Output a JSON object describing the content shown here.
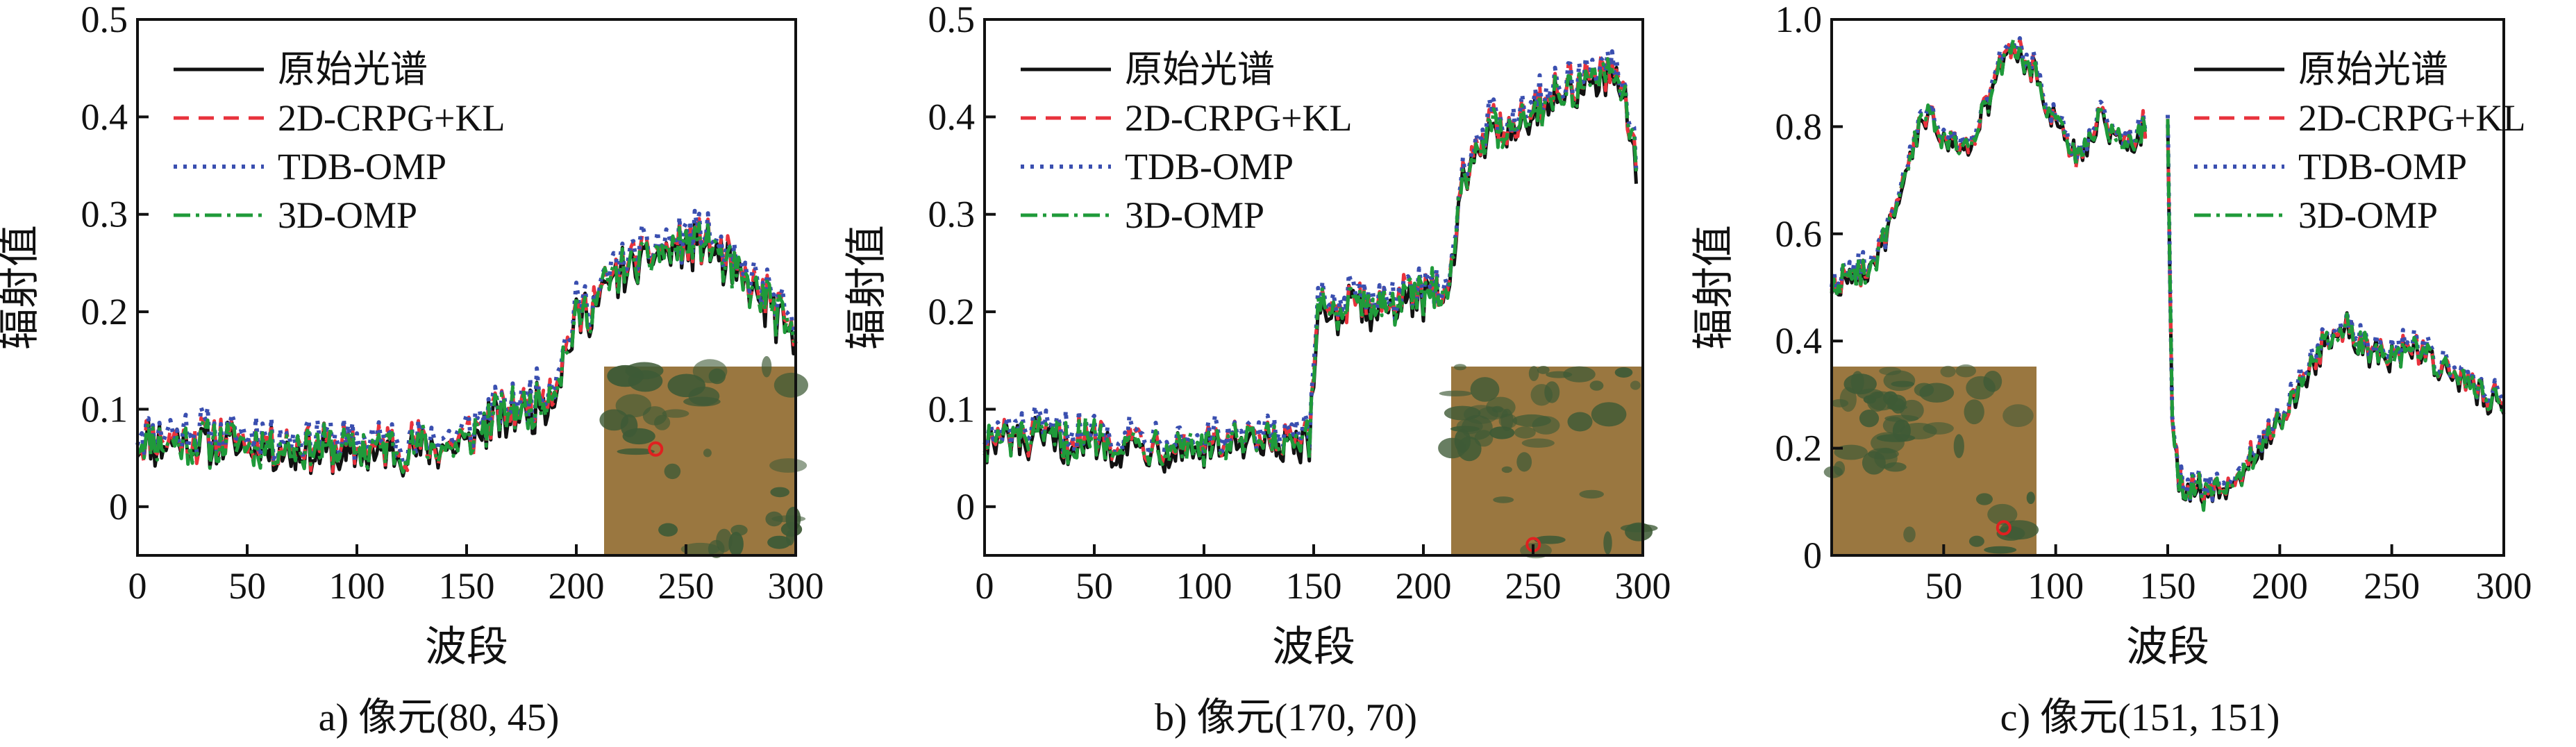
{
  "colors": {
    "original": "#111111",
    "crpg": "#e8323c",
    "tdb": "#3a4fb0",
    "omp3d": "#1f9a3a",
    "inset_background": "#9a7740",
    "inset_dark": "#3e5a36",
    "marker": "#e02020"
  },
  "legend_labels": [
    "原始光谱",
    "2D-CRPG+KL",
    "TDB-OMP",
    "3D-OMP"
  ],
  "chart_data": [
    {
      "type": "line",
      "caption": "a) 像元(80, 45)",
      "xlabel": "波段",
      "ylabel": "辐射值",
      "xlim": [
        0,
        300
      ],
      "ylim": [
        -0.05,
        0.5
      ],
      "xticks": [
        0,
        50,
        100,
        150,
        200,
        250,
        300
      ],
      "yticks": [
        0,
        0.1,
        0.2,
        0.3,
        0.4,
        0.5
      ],
      "xtick_labels": [
        "0",
        "50",
        "100",
        "150",
        "200",
        "250",
        "300"
      ],
      "ytick_labels": [
        "0",
        "0.1",
        "0.2",
        "0.3",
        "0.4",
        "0.5"
      ],
      "grid": false,
      "legend": "top-left",
      "legend_entries": [
        "原始光谱",
        "2D-CRPG+KL",
        "TDB-OMP",
        "3D-OMP"
      ],
      "inset": "pixel-location-image",
      "trend": {
        "x": [
          0,
          20,
          50,
          100,
          140,
          150,
          160,
          180,
          190,
          200,
          210,
          220,
          240,
          250,
          260,
          270,
          280,
          290,
          300
        ],
        "y": [
          0.065,
          0.065,
          0.062,
          0.055,
          0.058,
          0.065,
          0.085,
          0.1,
          0.12,
          0.19,
          0.21,
          0.24,
          0.26,
          0.265,
          0.27,
          0.24,
          0.22,
          0.2,
          0.165
        ]
      },
      "noise_amplitude": 0.022
    },
    {
      "type": "line",
      "caption": "b) 像元(170, 70)",
      "xlabel": "波段",
      "ylabel": "辐射值",
      "xlim": [
        0,
        300
      ],
      "ylim": [
        -0.05,
        0.5
      ],
      "xticks": [
        0,
        50,
        100,
        150,
        200,
        250,
        300
      ],
      "yticks": [
        0,
        0.1,
        0.2,
        0.3,
        0.4,
        0.5
      ],
      "xtick_labels": [
        "0",
        "50",
        "100",
        "150",
        "200",
        "250",
        "300"
      ],
      "ytick_labels": [
        "0",
        "0.1",
        "0.2",
        "0.3",
        "0.4",
        "0.5"
      ],
      "grid": false,
      "legend": "top-left",
      "legend_entries": [
        "原始光谱",
        "2D-CRPG+KL",
        "TDB-OMP",
        "3D-OMP"
      ],
      "inset": "pixel-location-image",
      "trend": {
        "x": [
          0,
          50,
          100,
          148,
          150,
          152,
          160,
          180,
          200,
          212,
          218,
          225,
          240,
          260,
          280,
          292,
          297
        ],
        "y": [
          0.065,
          0.065,
          0.06,
          0.06,
          0.12,
          0.21,
          0.2,
          0.205,
          0.21,
          0.23,
          0.33,
          0.375,
          0.39,
          0.42,
          0.44,
          0.42,
          0.35
        ]
      },
      "noise_amplitude": 0.02
    },
    {
      "type": "line",
      "caption": "c) 像元(151, 151)",
      "xlabel": "波段",
      "ylabel": "辐射值",
      "xlim": [
        0,
        300
      ],
      "ylim": [
        0,
        1.0
      ],
      "xticks": [
        50,
        100,
        150,
        200,
        250,
        300
      ],
      "yticks": [
        0,
        0.2,
        0.4,
        0.6,
        0.8,
        1.0
      ],
      "xtick_labels": [
        "50",
        "100",
        "150",
        "200",
        "250",
        "300"
      ],
      "ytick_labels": [
        "0",
        "0.2",
        "0.4",
        "0.6",
        "0.8",
        "1.0"
      ],
      "grid": false,
      "legend": "top-right",
      "legend_entries": [
        "原始光谱",
        "2D-CRPG+KL",
        "TDB-OMP",
        "3D-OMP"
      ],
      "inset": "pixel-location-image",
      "gap": [
        140,
        150
      ],
      "trend": {
        "x": [
          0,
          10,
          20,
          30,
          40,
          50,
          60,
          70,
          80,
          90,
          100,
          110,
          120,
          130,
          140,
          150,
          152,
          155,
          160,
          170,
          180,
          190,
          200,
          210,
          220,
          230,
          240,
          250,
          260,
          270,
          280,
          290,
          300
        ],
        "y": [
          0.5,
          0.52,
          0.55,
          0.65,
          0.82,
          0.78,
          0.75,
          0.85,
          0.95,
          0.9,
          0.8,
          0.74,
          0.82,
          0.76,
          0.8,
          0.8,
          0.25,
          0.14,
          0.12,
          0.11,
          0.13,
          0.2,
          0.25,
          0.32,
          0.4,
          0.42,
          0.38,
          0.37,
          0.39,
          0.35,
          0.33,
          0.3,
          0.28
        ]
      },
      "noise_amplitude": 0.025
    }
  ]
}
